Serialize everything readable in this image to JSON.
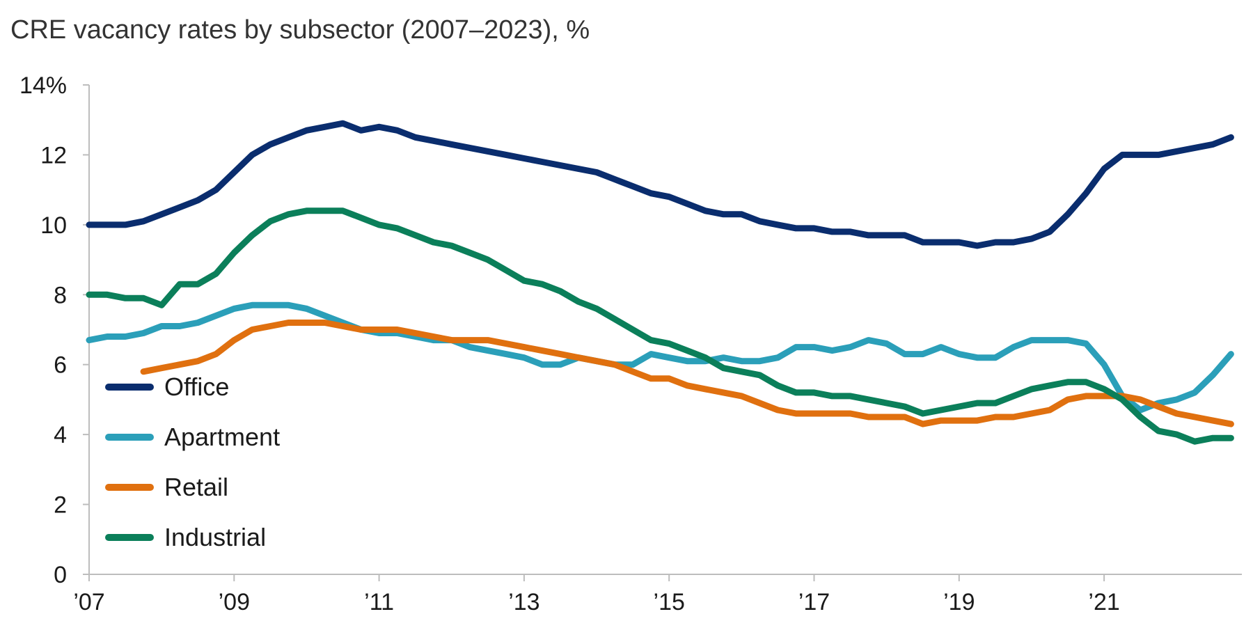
{
  "chart_data": {
    "type": "line",
    "title": "CRE vacancy rates by subsector (2007–2023), %",
    "xlabel": "",
    "ylabel": "",
    "xlim": [
      2007,
      2022.9
    ],
    "ylim": [
      0,
      14
    ],
    "grid": false,
    "y_ticks": [
      "0",
      "2",
      "4",
      "6",
      "8",
      "10",
      "12",
      "14%"
    ],
    "x_ticks": [
      "’07",
      "’09",
      "’11",
      "’13",
      "’15",
      "’17",
      "’19",
      "’21"
    ],
    "legend_position": "lower-left",
    "series": [
      {
        "name": "Office",
        "color": "#0a2d6e",
        "x": [
          2007,
          2007.25,
          2007.5,
          2007.75,
          2008,
          2008.25,
          2008.5,
          2008.75,
          2009,
          2009.25,
          2009.5,
          2009.75,
          2010,
          2010.25,
          2010.5,
          2010.75,
          2011,
          2011.25,
          2011.5,
          2011.75,
          2012,
          2012.25,
          2012.5,
          2012.75,
          2013,
          2013.25,
          2013.5,
          2013.75,
          2014,
          2014.25,
          2014.5,
          2014.75,
          2015,
          2015.25,
          2015.5,
          2015.75,
          2016,
          2016.25,
          2016.5,
          2016.75,
          2017,
          2017.25,
          2017.5,
          2017.75,
          2018,
          2018.25,
          2018.5,
          2018.75,
          2019,
          2019.25,
          2019.5,
          2019.75,
          2020,
          2020.25,
          2020.5,
          2020.75,
          2021,
          2021.25,
          2021.5,
          2021.75,
          2022,
          2022.25,
          2022.5,
          2022.75
        ],
        "values": [
          10.0,
          10.0,
          10.0,
          10.1,
          10.3,
          10.5,
          10.7,
          11.0,
          11.5,
          12.0,
          12.3,
          12.5,
          12.7,
          12.8,
          12.9,
          12.7,
          12.8,
          12.7,
          12.5,
          12.4,
          12.3,
          12.2,
          12.1,
          12.0,
          11.9,
          11.8,
          11.7,
          11.6,
          11.5,
          11.3,
          11.1,
          10.9,
          10.8,
          10.6,
          10.4,
          10.3,
          10.3,
          10.1,
          10.0,
          9.9,
          9.9,
          9.8,
          9.8,
          9.7,
          9.7,
          9.7,
          9.5,
          9.5,
          9.5,
          9.4,
          9.5,
          9.5,
          9.6,
          9.8,
          10.3,
          10.9,
          11.6,
          12.0,
          12.0,
          12.0,
          12.1,
          12.2,
          12.3,
          12.5
        ]
      },
      {
        "name": "Apartment",
        "color": "#2b9fb9",
        "x": [
          2007,
          2007.25,
          2007.5,
          2007.75,
          2008,
          2008.25,
          2008.5,
          2008.75,
          2009,
          2009.25,
          2009.5,
          2009.75,
          2010,
          2010.25,
          2010.5,
          2010.75,
          2011,
          2011.25,
          2011.5,
          2011.75,
          2012,
          2012.25,
          2012.5,
          2012.75,
          2013,
          2013.25,
          2013.5,
          2013.75,
          2014,
          2014.25,
          2014.5,
          2014.75,
          2015,
          2015.25,
          2015.5,
          2015.75,
          2016,
          2016.25,
          2016.5,
          2016.75,
          2017,
          2017.25,
          2017.5,
          2017.75,
          2018,
          2018.25,
          2018.5,
          2018.75,
          2019,
          2019.25,
          2019.5,
          2019.75,
          2020,
          2020.25,
          2020.5,
          2020.75,
          2021,
          2021.25,
          2021.5,
          2021.75,
          2022,
          2022.25,
          2022.5,
          2022.75
        ],
        "values": [
          6.7,
          6.8,
          6.8,
          6.9,
          7.1,
          7.1,
          7.2,
          7.4,
          7.6,
          7.7,
          7.7,
          7.7,
          7.6,
          7.4,
          7.2,
          7.0,
          6.9,
          6.9,
          6.8,
          6.7,
          6.7,
          6.5,
          6.4,
          6.3,
          6.2,
          6.0,
          6.0,
          6.2,
          6.1,
          6.0,
          6.0,
          6.3,
          6.2,
          6.1,
          6.1,
          6.2,
          6.1,
          6.1,
          6.2,
          6.5,
          6.5,
          6.4,
          6.5,
          6.7,
          6.6,
          6.3,
          6.3,
          6.5,
          6.3,
          6.2,
          6.2,
          6.5,
          6.7,
          6.7,
          6.7,
          6.6,
          6.0,
          5.1,
          4.7,
          4.9,
          5.0,
          5.2,
          5.7,
          6.3
        ]
      },
      {
        "name": "Retail",
        "color": "#e0700f",
        "x": [
          2007.75,
          2008,
          2008.25,
          2008.5,
          2008.75,
          2009,
          2009.25,
          2009.5,
          2009.75,
          2010,
          2010.25,
          2010.5,
          2010.75,
          2011,
          2011.25,
          2011.5,
          2011.75,
          2012,
          2012.25,
          2012.5,
          2012.75,
          2013,
          2013.25,
          2013.5,
          2013.75,
          2014,
          2014.25,
          2014.5,
          2014.75,
          2015,
          2015.25,
          2015.5,
          2015.75,
          2016,
          2016.25,
          2016.5,
          2016.75,
          2017,
          2017.25,
          2017.5,
          2017.75,
          2018,
          2018.25,
          2018.5,
          2018.75,
          2019,
          2019.25,
          2019.5,
          2019.75,
          2020,
          2020.25,
          2020.5,
          2020.75,
          2021,
          2021.25,
          2021.5,
          2021.75,
          2022,
          2022.25,
          2022.5,
          2022.75
        ],
        "values": [
          5.8,
          5.9,
          6.0,
          6.1,
          6.3,
          6.7,
          7.0,
          7.1,
          7.2,
          7.2,
          7.2,
          7.1,
          7.0,
          7.0,
          7.0,
          6.9,
          6.8,
          6.7,
          6.7,
          6.7,
          6.6,
          6.5,
          6.4,
          6.3,
          6.2,
          6.1,
          6.0,
          5.8,
          5.6,
          5.6,
          5.4,
          5.3,
          5.2,
          5.1,
          4.9,
          4.7,
          4.6,
          4.6,
          4.6,
          4.6,
          4.5,
          4.5,
          4.5,
          4.3,
          4.4,
          4.4,
          4.4,
          4.5,
          4.5,
          4.6,
          4.7,
          5.0,
          5.1,
          5.1,
          5.1,
          5.0,
          4.8,
          4.6,
          4.5,
          4.4,
          4.3
        ]
      },
      {
        "name": "Industrial",
        "color": "#0b7f5a",
        "x": [
          2007,
          2007.25,
          2007.5,
          2007.75,
          2008,
          2008.25,
          2008.5,
          2008.75,
          2009,
          2009.25,
          2009.5,
          2009.75,
          2010,
          2010.25,
          2010.5,
          2010.75,
          2011,
          2011.25,
          2011.5,
          2011.75,
          2012,
          2012.25,
          2012.5,
          2012.75,
          2013,
          2013.25,
          2013.5,
          2013.75,
          2014,
          2014.25,
          2014.5,
          2014.75,
          2015,
          2015.25,
          2015.5,
          2015.75,
          2016,
          2016.25,
          2016.5,
          2016.75,
          2017,
          2017.25,
          2017.5,
          2017.75,
          2018,
          2018.25,
          2018.5,
          2018.75,
          2019,
          2019.25,
          2019.5,
          2019.75,
          2020,
          2020.25,
          2020.5,
          2020.75,
          2021,
          2021.25,
          2021.5,
          2021.75,
          2022,
          2022.25,
          2022.5,
          2022.75
        ],
        "values": [
          8.0,
          8.0,
          7.9,
          7.9,
          7.7,
          8.3,
          8.3,
          8.6,
          9.2,
          9.7,
          10.1,
          10.3,
          10.4,
          10.4,
          10.4,
          10.2,
          10.0,
          9.9,
          9.7,
          9.5,
          9.4,
          9.2,
          9.0,
          8.7,
          8.4,
          8.3,
          8.1,
          7.8,
          7.6,
          7.3,
          7.0,
          6.7,
          6.6,
          6.4,
          6.2,
          5.9,
          5.8,
          5.7,
          5.4,
          5.2,
          5.2,
          5.1,
          5.1,
          5.0,
          4.9,
          4.8,
          4.6,
          4.7,
          4.8,
          4.9,
          4.9,
          5.1,
          5.3,
          5.4,
          5.5,
          5.5,
          5.3,
          5.0,
          4.5,
          4.1,
          4.0,
          3.8,
          3.9,
          3.9
        ]
      }
    ]
  }
}
